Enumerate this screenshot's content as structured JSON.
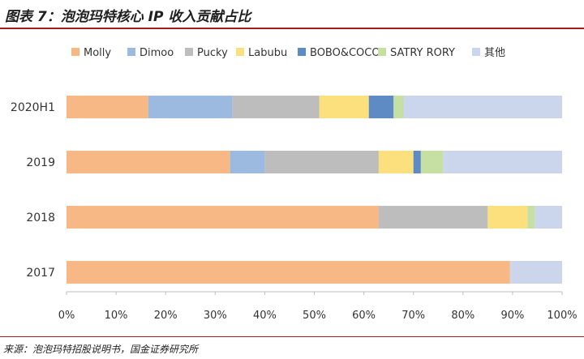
{
  "figure": {
    "title": "图表 7：泡泡玛特核心 IP 收入贡献占比",
    "source": "来源：泡泡玛特招股说明书，国金证券研究所"
  },
  "chart_data": {
    "type": "bar",
    "orientation": "horizontal",
    "stacked": true,
    "percent": true,
    "categories": [
      "2020H1",
      "2019",
      "2018",
      "2017"
    ],
    "series": [
      {
        "name": "Molly",
        "color": "#f7b886",
        "values": [
          16.5,
          33.0,
          63.0,
          89.5
        ]
      },
      {
        "name": "Dimoo",
        "color": "#9cb9e0",
        "values": [
          17.0,
          7.0,
          0.0,
          0.0
        ]
      },
      {
        "name": "Pucky",
        "color": "#bdbdbd",
        "values": [
          17.5,
          23.0,
          22.0,
          0.0
        ]
      },
      {
        "name": "Labubu",
        "color": "#fde07e",
        "values": [
          10.0,
          7.0,
          8.0,
          0.0
        ]
      },
      {
        "name": "BOBO&COCO",
        "color": "#5f8bc4",
        "values": [
          5.0,
          1.5,
          0.0,
          0.0
        ]
      },
      {
        "name": "SATRY RORY",
        "color": "#c6dfa2",
        "values": [
          2.0,
          4.5,
          1.5,
          0.0
        ]
      },
      {
        "name": "其他",
        "color": "#cbd5ec",
        "values": [
          32.0,
          24.0,
          5.5,
          10.5
        ]
      }
    ],
    "xlim": [
      0,
      100
    ],
    "xticks": [
      "0%",
      "10%",
      "20%",
      "30%",
      "40%",
      "50%",
      "60%",
      "70%",
      "80%",
      "90%",
      "100%"
    ],
    "legend": "top",
    "grid": false
  }
}
